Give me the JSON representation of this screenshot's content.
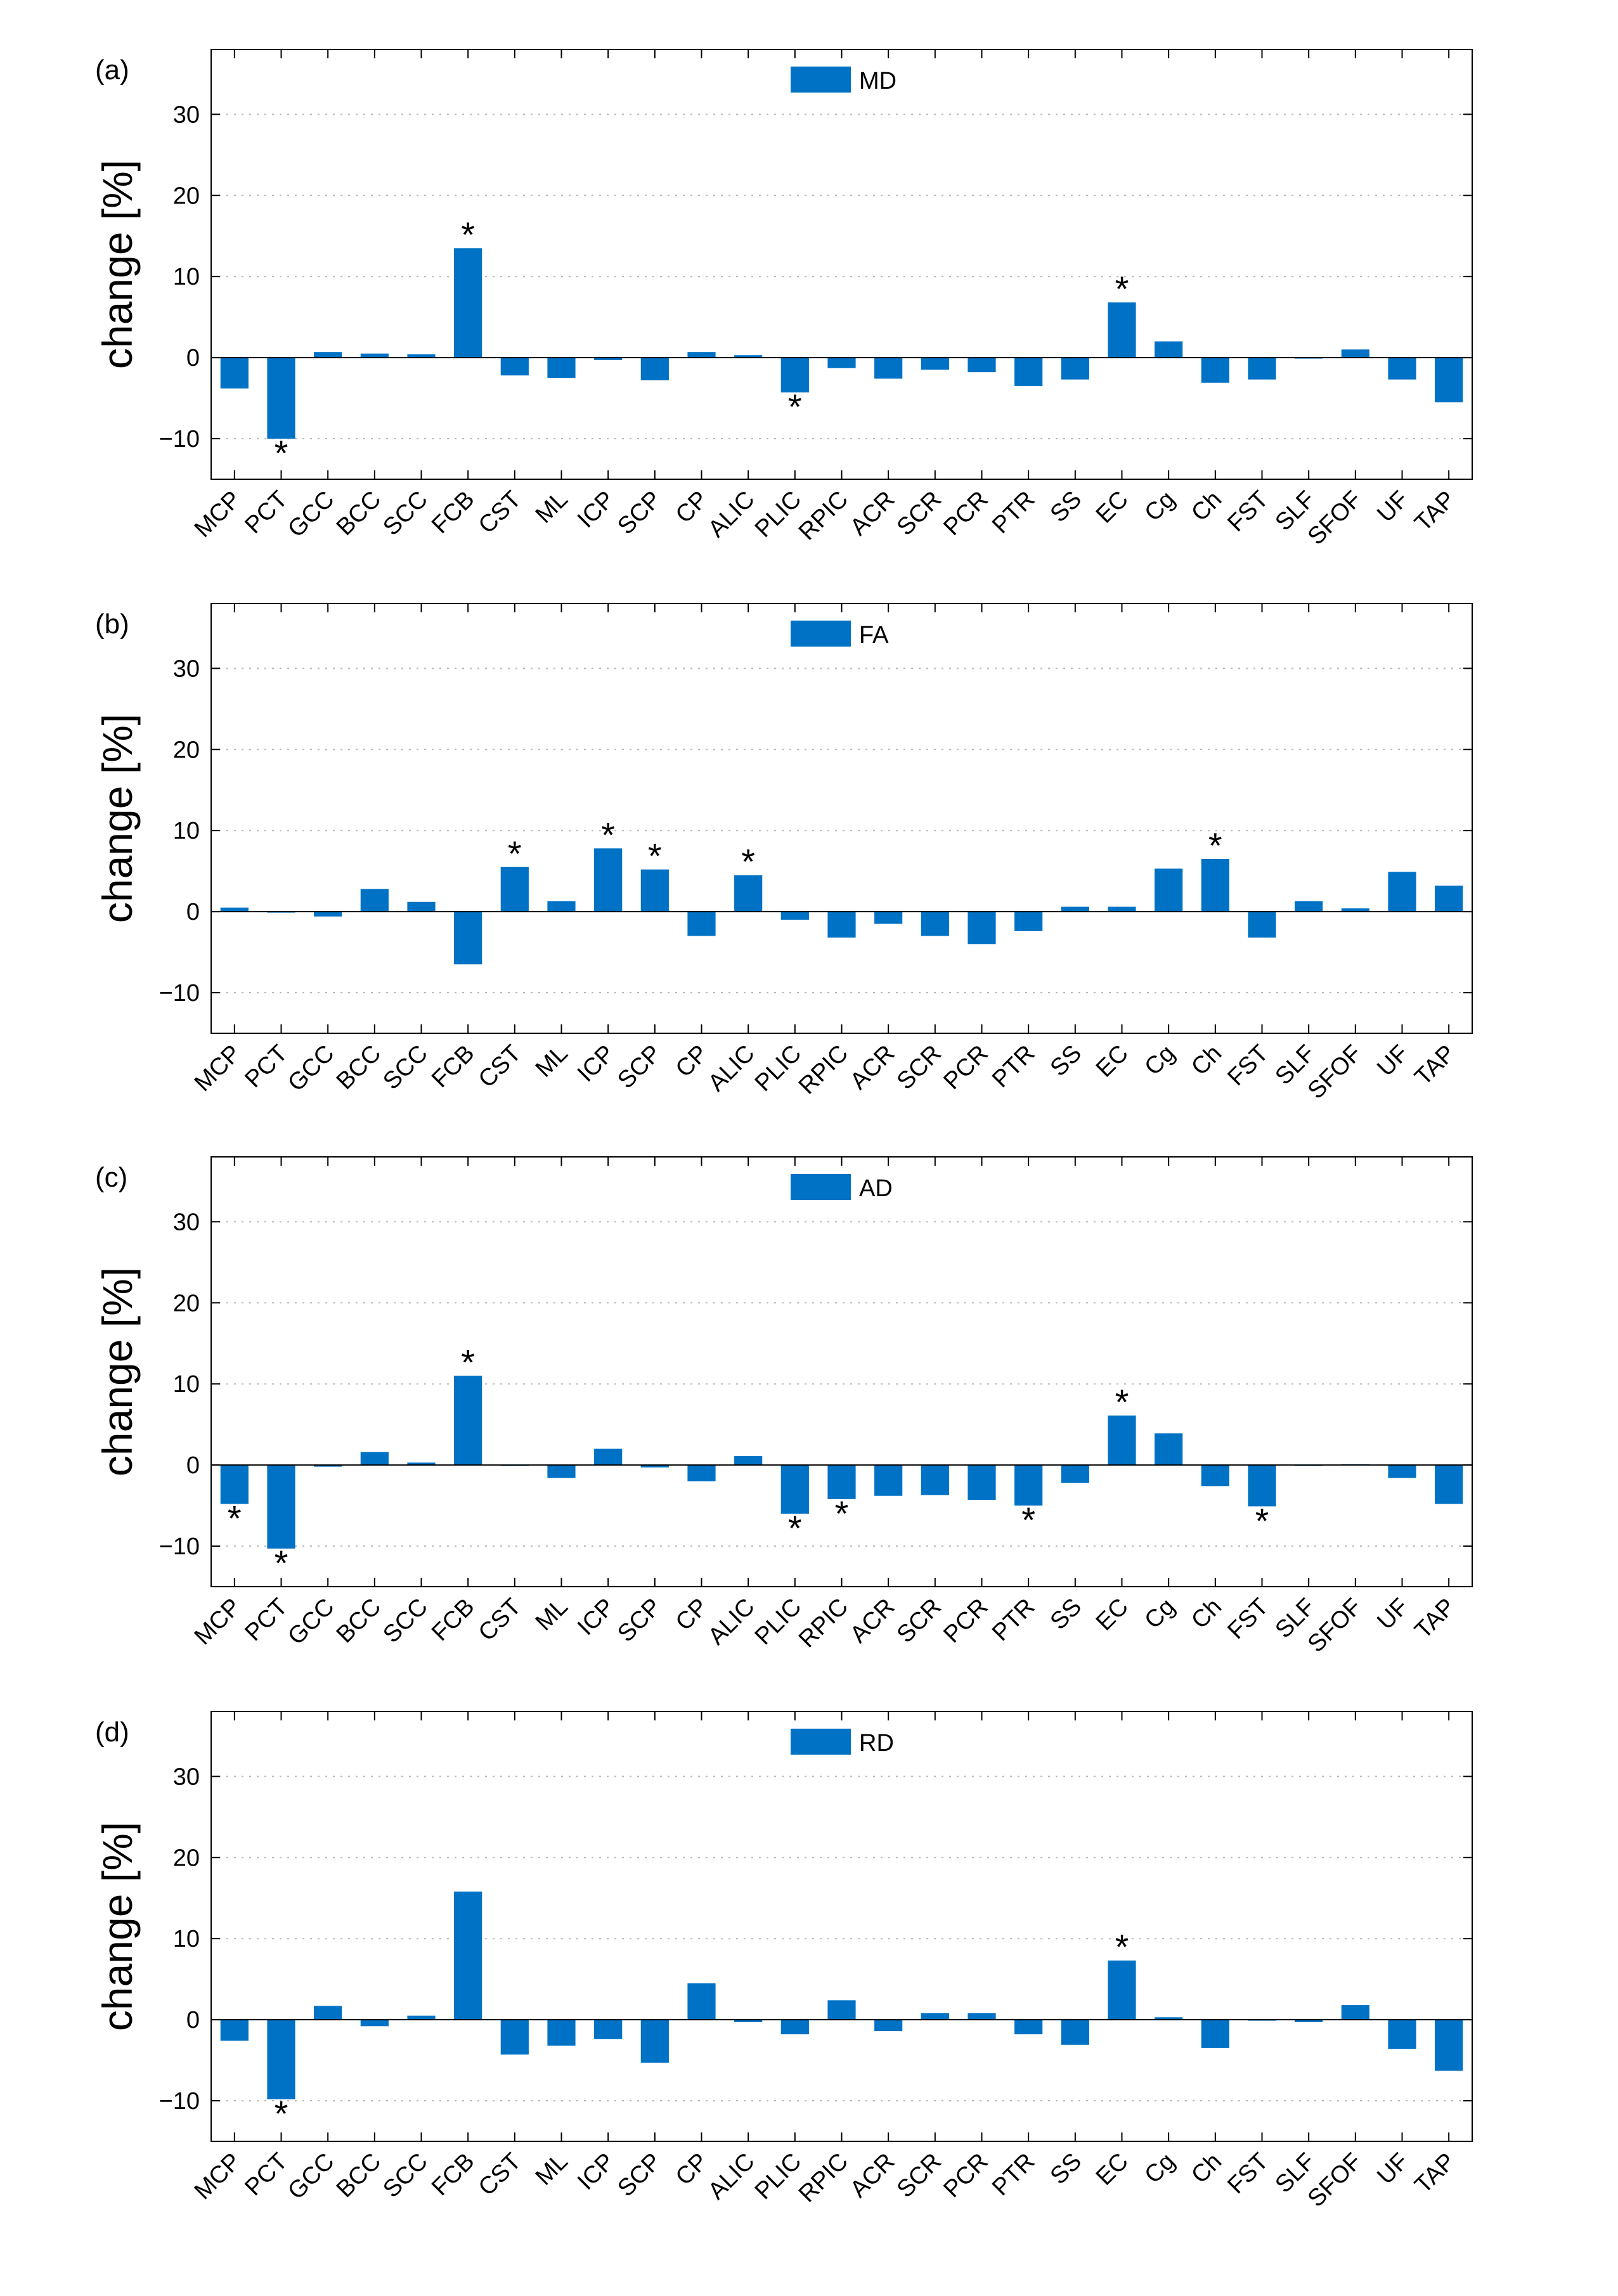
{
  "figure": {
    "bar_color": "#0072C6"
  },
  "chart_data": [
    {
      "type": "bar",
      "panel_label": "(a)",
      "legend": "MD",
      "ylabel": "change [%]",
      "ylim": [
        -15,
        38
      ],
      "yticks": [
        "30",
        "20",
        "10",
        "0",
        "−10"
      ],
      "ytick_values": [
        30,
        20,
        10,
        0,
        -10
      ],
      "grid": true,
      "categories": [
        "MCP",
        "PCT",
        "GCC",
        "BCC",
        "SCC",
        "FCB",
        "CST",
        "ML",
        "ICP",
        "SCP",
        "CP",
        "ALIC",
        "PLIC",
        "RPIC",
        "ACR",
        "SCR",
        "PCR",
        "PTR",
        "SS",
        "EC",
        "Cg",
        "Ch",
        "FST",
        "SLF",
        "SFOF",
        "UF",
        "TAP"
      ],
      "values": [
        -3.8,
        -10.0,
        0.7,
        0.5,
        0.4,
        13.5,
        -2.2,
        -2.5,
        -0.3,
        -2.8,
        0.7,
        0.3,
        -4.3,
        -1.3,
        -2.6,
        -1.5,
        -1.8,
        -3.5,
        -2.7,
        6.8,
        2.0,
        -3.1,
        -2.7,
        -0.1,
        1.0,
        -2.7,
        -5.5
      ],
      "significance_label": "*",
      "significant": [
        "PCT",
        "FCB",
        "PLIC",
        "EC"
      ]
    },
    {
      "type": "bar",
      "panel_label": "(b)",
      "legend": "FA",
      "ylabel": "change [%]",
      "ylim": [
        -15,
        38
      ],
      "yticks": [
        "30",
        "20",
        "10",
        "0",
        "−10"
      ],
      "ytick_values": [
        30,
        20,
        10,
        0,
        -10
      ],
      "grid": true,
      "categories": [
        "MCP",
        "PCT",
        "GCC",
        "BCC",
        "SCC",
        "FCB",
        "CST",
        "ML",
        "ICP",
        "SCP",
        "CP",
        "ALIC",
        "PLIC",
        "RPIC",
        "ACR",
        "SCR",
        "PCR",
        "PTR",
        "SS",
        "EC",
        "Cg",
        "Ch",
        "FST",
        "SLF",
        "SFOF",
        "UF",
        "TAP"
      ],
      "values": [
        0.5,
        0.0,
        -0.6,
        2.8,
        1.2,
        -6.5,
        5.5,
        1.3,
        7.8,
        5.2,
        -3.0,
        4.5,
        -1.0,
        -3.2,
        -1.5,
        -3.0,
        -4.0,
        -2.4,
        0.6,
        0.6,
        5.3,
        6.5,
        -3.2,
        1.3,
        0.4,
        4.9,
        3.2
      ],
      "significance_label": "*",
      "significant": [
        "CST",
        "ICP",
        "SCP",
        "ALIC",
        "Ch"
      ]
    },
    {
      "type": "bar",
      "panel_label": "(c)",
      "legend": "AD",
      "ylabel": "change [%]",
      "ylim": [
        -15,
        38
      ],
      "yticks": [
        "30",
        "20",
        "10",
        "0",
        "−10"
      ],
      "ytick_values": [
        30,
        20,
        10,
        0,
        -10
      ],
      "grid": true,
      "categories": [
        "MCP",
        "PCT",
        "GCC",
        "BCC",
        "SCC",
        "FCB",
        "CST",
        "ML",
        "ICP",
        "SCP",
        "CP",
        "ALIC",
        "PLIC",
        "RPIC",
        "ACR",
        "SCR",
        "PCR",
        "PTR",
        "SS",
        "EC",
        "Cg",
        "Ch",
        "FST",
        "SLF",
        "SFOF",
        "UF",
        "TAP"
      ],
      "values": [
        -4.8,
        -10.3,
        -0.2,
        1.6,
        0.3,
        11.0,
        0.0,
        -1.6,
        2.0,
        -0.3,
        -2.0,
        1.1,
        -6.0,
        -4.2,
        -3.8,
        -3.7,
        -4.3,
        -5.0,
        -2.2,
        6.1,
        3.9,
        -2.6,
        -5.1,
        0.0,
        0.1,
        -1.6,
        -4.8
      ],
      "significance_label": "*",
      "significant": [
        "MCP",
        "PCT",
        "FCB",
        "PLIC",
        "RPIC",
        "PTR",
        "EC",
        "FST"
      ]
    },
    {
      "type": "bar",
      "panel_label": "(d)",
      "legend": "RD",
      "ylabel": "change [%]",
      "ylim": [
        -15,
        38
      ],
      "yticks": [
        "30",
        "20",
        "10",
        "0",
        "−10"
      ],
      "ytick_values": [
        30,
        20,
        10,
        0,
        -10
      ],
      "grid": true,
      "categories": [
        "MCP",
        "PCT",
        "GCC",
        "BCC",
        "SCC",
        "FCB",
        "CST",
        "ML",
        "ICP",
        "SCP",
        "CP",
        "ALIC",
        "PLIC",
        "RPIC",
        "ACR",
        "SCR",
        "PCR",
        "PTR",
        "SS",
        "EC",
        "Cg",
        "Ch",
        "FST",
        "SLF",
        "SFOF",
        "UF",
        "TAP"
      ],
      "values": [
        -2.6,
        -9.8,
        1.7,
        -0.8,
        0.5,
        15.8,
        -4.3,
        -3.2,
        -2.4,
        -5.3,
        4.5,
        -0.3,
        -1.8,
        2.4,
        -1.4,
        0.8,
        0.8,
        -1.8,
        -3.1,
        7.3,
        0.3,
        -3.5,
        0.0,
        -0.3,
        1.8,
        -3.6,
        -6.3
      ],
      "significance_label": "*",
      "significant": [
        "PCT",
        "EC"
      ]
    }
  ]
}
